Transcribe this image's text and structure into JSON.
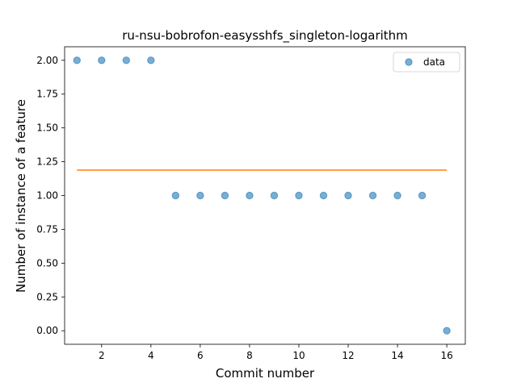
{
  "chart_data": {
    "type": "scatter",
    "title": "ru-nsu-bobrofon-easysshfs_singleton-logarithm",
    "xlabel": "Commit number",
    "ylabel": "Number of instance of a feature",
    "xlim": [
      0.5,
      16.75
    ],
    "ylim": [
      -0.1,
      2.1
    ],
    "xticks": [
      2,
      4,
      6,
      8,
      10,
      12,
      14,
      16
    ],
    "yticks": [
      0.0,
      0.25,
      0.5,
      0.75,
      1.0,
      1.25,
      1.5,
      1.75,
      2.0
    ],
    "grid": false,
    "legend_position": "upper right",
    "series": [
      {
        "name": "data",
        "kind": "scatter",
        "color": "#1f77b4",
        "x": [
          1,
          2,
          3,
          4,
          5,
          6,
          7,
          8,
          9,
          10,
          11,
          12,
          13,
          14,
          15,
          16
        ],
        "y": [
          2,
          2,
          2,
          2,
          1,
          1,
          1,
          1,
          1,
          1,
          1,
          1,
          1,
          1,
          1,
          0
        ]
      },
      {
        "kind": "line",
        "color": "#ff7f0e",
        "x": [
          1,
          16
        ],
        "y": [
          1.1875,
          1.1875
        ]
      }
    ]
  }
}
